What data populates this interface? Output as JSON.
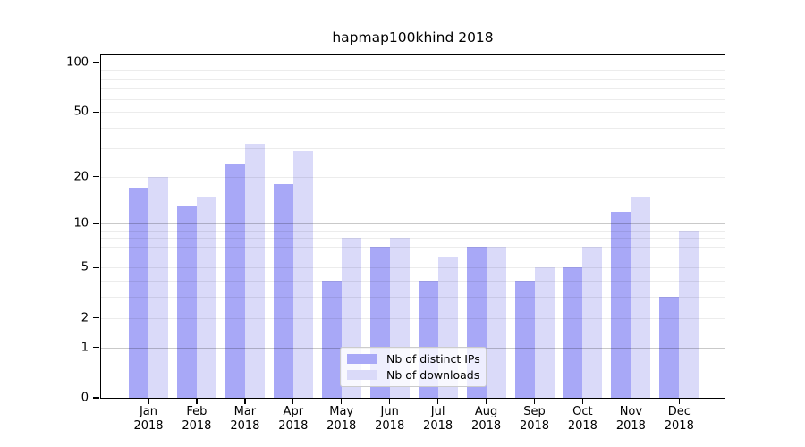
{
  "title": "hapmap100khind 2018",
  "chart_data": {
    "type": "bar",
    "title": "hapmap100khind 2018",
    "categories": [
      "Jan 2018",
      "Feb 2018",
      "Mar 2018",
      "Apr 2018",
      "May 2018",
      "Jun 2018",
      "Jul 2018",
      "Aug 2018",
      "Sep 2018",
      "Oct 2018",
      "Nov 2018",
      "Dec 2018"
    ],
    "x_tick_line1": [
      "Jan",
      "Feb",
      "Mar",
      "Apr",
      "May",
      "Jun",
      "Jul",
      "Aug",
      "Sep",
      "Oct",
      "Nov",
      "Dec"
    ],
    "x_tick_line2": "2018",
    "series": [
      {
        "name": "Nb of distinct IPs",
        "color": "#a8a8f7",
        "values": [
          17,
          13,
          24,
          18,
          4,
          7,
          4,
          7,
          4,
          5,
          12,
          3
        ]
      },
      {
        "name": "Nb of downloads",
        "color": "#dadaf9",
        "values": [
          20,
          15,
          32,
          29,
          8,
          8,
          6,
          7,
          5,
          7,
          15,
          9
        ]
      }
    ],
    "yscale": "log10(1+y)",
    "ylim": [
      0,
      111
    ],
    "y_ticks": [
      0,
      1,
      2,
      5,
      10,
      20,
      50,
      100
    ],
    "y_minor_gridlines": [
      2,
      3,
      4,
      5,
      6,
      7,
      8,
      9,
      20,
      30,
      40,
      50,
      60,
      70,
      80,
      90
    ],
    "y_major_gridlines": [
      1,
      10,
      100
    ],
    "grid": true,
    "legend_position": "lower center"
  },
  "colors": {
    "bar_distinct_ips": "#a8a8f7",
    "bar_downloads": "#dadaf9",
    "grid_minor": "rgba(0,0,0,0.075)",
    "grid_major": "rgba(0,0,0,0.21)",
    "axis": "#000000",
    "legend_border": "#cccccc",
    "legend_background": "rgba(255,255,255,0.8)"
  }
}
